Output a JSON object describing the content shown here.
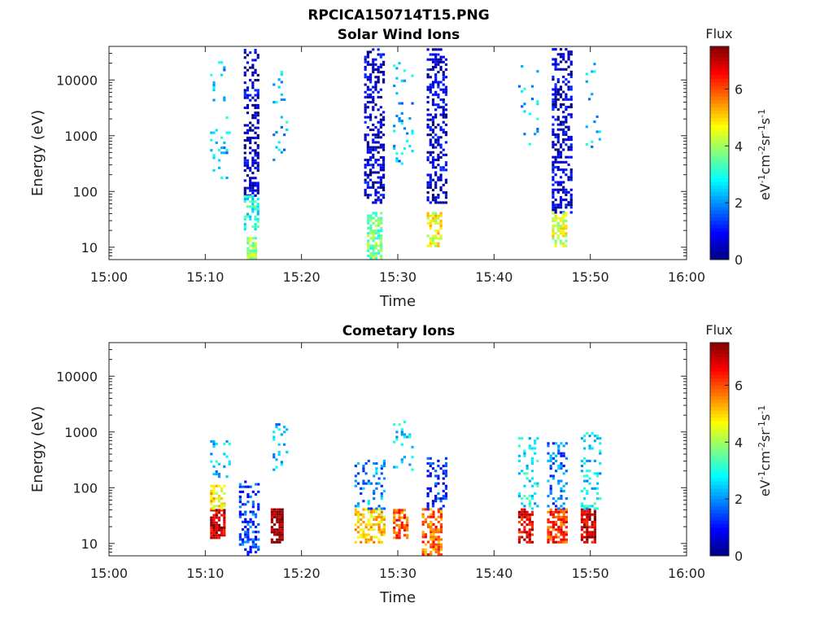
{
  "figure_title": "RPCICA150714T15.PNG",
  "colormap": [
    "#00007f",
    "#0000ff",
    "#007fff",
    "#00ffff",
    "#7fff7f",
    "#ffff00",
    "#ff7f00",
    "#ff0000",
    "#7f0000"
  ],
  "colorbar": {
    "title": "Flux",
    "label_prefix": "eV",
    "label_sup1": "-1",
    "label_mid1": "cm",
    "label_sup2": "-2",
    "label_mid2": "sr",
    "label_sup3": "-1",
    "label_mid3": "s",
    "label_sup4": "-1",
    "range": [
      0,
      7.5
    ],
    "ticks": [
      0,
      2,
      4,
      6
    ],
    "tick_labels": [
      "0",
      "2",
      "4",
      "6"
    ]
  },
  "chart_data": [
    {
      "type": "heatmap",
      "title": "Solar Wind Ions",
      "xlabel": "Time",
      "ylabel": "Energy (eV)",
      "xlim": [
        "15:00",
        "16:00"
      ],
      "ylim": [
        6,
        40000
      ],
      "yscale": "log",
      "xticks": [
        "15:00",
        "15:10",
        "15:20",
        "15:30",
        "15:40",
        "15:50",
        "16:00"
      ],
      "yticks": [
        10,
        100,
        1000,
        10000
      ],
      "ytick_labels": [
        "10",
        "100",
        "1000",
        "10000"
      ],
      "flux_range": [
        0,
        7.5
      ],
      "clusters": [
        {
          "t0": "15:10.5",
          "t1": "15:12.5",
          "e0": 150,
          "e1": 25000,
          "v": 2.4,
          "d": 0.08
        },
        {
          "t0": "15:14.0",
          "t1": "15:15.5",
          "e0": 80,
          "e1": 35000,
          "v": 0.5,
          "d": 0.45
        },
        {
          "t0": "15:14.0",
          "t1": "15:15.5",
          "e0": 20,
          "e1": 80,
          "v": 3.0,
          "d": 0.4
        },
        {
          "t0": "15:14.3",
          "t1": "15:15.3",
          "e0": 6,
          "e1": 15,
          "v": 3.9,
          "d": 0.7
        },
        {
          "t0": "15:17.0",
          "t1": "15:18.5",
          "e0": 350,
          "e1": 15000,
          "v": 2.4,
          "d": 0.08
        },
        {
          "t0": "15:26.5",
          "t1": "15:28.5",
          "e0": 60,
          "e1": 35000,
          "v": 0.6,
          "d": 0.45
        },
        {
          "t0": "15:26.8",
          "t1": "15:28.3",
          "e0": 6,
          "e1": 40,
          "v": 3.6,
          "d": 0.7
        },
        {
          "t0": "15:29.5",
          "t1": "15:31.5",
          "e0": 300,
          "e1": 20000,
          "v": 2.3,
          "d": 0.12
        },
        {
          "t0": "15:33.0",
          "t1": "15:35.0",
          "e0": 60,
          "e1": 35000,
          "v": 0.6,
          "d": 0.45
        },
        {
          "t0": "15:33.0",
          "t1": "15:34.5",
          "e0": 10,
          "e1": 40,
          "v": 4.6,
          "d": 0.6
        },
        {
          "t0": "15:42.5",
          "t1": "15:44.5",
          "e0": 400,
          "e1": 20000,
          "v": 2.4,
          "d": 0.08
        },
        {
          "t0": "15:46.0",
          "t1": "15:48.0",
          "e0": 40,
          "e1": 35000,
          "v": 0.6,
          "d": 0.45
        },
        {
          "t0": "15:46.0",
          "t1": "15:47.5",
          "e0": 10,
          "e1": 40,
          "v": 4.4,
          "d": 0.6
        },
        {
          "t0": "15:49.5",
          "t1": "15:51.0",
          "e0": 600,
          "e1": 30000,
          "v": 2.4,
          "d": 0.08
        }
      ]
    },
    {
      "type": "heatmap",
      "title": "Cometary Ions",
      "xlabel": "Time",
      "ylabel": "Energy (eV)",
      "xlim": [
        "15:00",
        "16:00"
      ],
      "ylim": [
        6,
        40000
      ],
      "yscale": "log",
      "xticks": [
        "15:00",
        "15:10",
        "15:20",
        "15:30",
        "15:40",
        "15:50",
        "16:00"
      ],
      "yticks": [
        10,
        100,
        1000,
        10000
      ],
      "ytick_labels": [
        "10",
        "100",
        "1000",
        "10000"
      ],
      "flux_range": [
        0,
        7.5
      ],
      "clusters": [
        {
          "t0": "15:10.5",
          "t1": "15:12.0",
          "e0": 12,
          "e1": 40,
          "v": 7.0,
          "d": 0.8
        },
        {
          "t0": "15:10.5",
          "t1": "15:12.0",
          "e0": 40,
          "e1": 110,
          "v": 4.8,
          "d": 0.4
        },
        {
          "t0": "15:10.5",
          "t1": "15:12.5",
          "e0": 150,
          "e1": 700,
          "v": 2.4,
          "d": 0.2
        },
        {
          "t0": "15:13.5",
          "t1": "15:15.5",
          "e0": 6,
          "e1": 130,
          "v": 1.4,
          "d": 0.35
        },
        {
          "t0": "15:16.8",
          "t1": "15:18.0",
          "e0": 10,
          "e1": 40,
          "v": 7.4,
          "d": 0.85
        },
        {
          "t0": "15:17.0",
          "t1": "15:18.5",
          "e0": 200,
          "e1": 1500,
          "v": 2.4,
          "d": 0.2
        },
        {
          "t0": "15:25.5",
          "t1": "15:28.5",
          "e0": 10,
          "e1": 40,
          "v": 5.0,
          "d": 0.55
        },
        {
          "t0": "15:25.5",
          "t1": "15:28.5",
          "e0": 40,
          "e1": 300,
          "v": 2.0,
          "d": 0.25
        },
        {
          "t0": "15:29.5",
          "t1": "15:31.0",
          "e0": 12,
          "e1": 40,
          "v": 6.0,
          "d": 0.6
        },
        {
          "t0": "15:29.5",
          "t1": "15:31.5",
          "e0": 200,
          "e1": 1500,
          "v": 2.6,
          "d": 0.15
        },
        {
          "t0": "15:32.5",
          "t1": "15:34.5",
          "e0": 6,
          "e1": 40,
          "v": 5.8,
          "d": 0.6
        },
        {
          "t0": "15:33.0",
          "t1": "15:35.0",
          "e0": 40,
          "e1": 350,
          "v": 1.2,
          "d": 0.35
        },
        {
          "t0": "15:42.5",
          "t1": "15:44.0",
          "e0": 10,
          "e1": 40,
          "v": 6.8,
          "d": 0.8
        },
        {
          "t0": "15:42.5",
          "t1": "15:44.5",
          "e0": 40,
          "e1": 800,
          "v": 2.8,
          "d": 0.25
        },
        {
          "t0": "15:45.5",
          "t1": "15:47.5",
          "e0": 10,
          "e1": 40,
          "v": 6.2,
          "d": 0.75
        },
        {
          "t0": "15:45.5",
          "t1": "15:47.5",
          "e0": 40,
          "e1": 600,
          "v": 1.8,
          "d": 0.25
        },
        {
          "t0": "15:49.0",
          "t1": "15:50.5",
          "e0": 10,
          "e1": 40,
          "v": 7.0,
          "d": 0.8
        },
        {
          "t0": "15:49.0",
          "t1": "15:51.0",
          "e0": 40,
          "e1": 900,
          "v": 2.6,
          "d": 0.25
        }
      ]
    }
  ]
}
